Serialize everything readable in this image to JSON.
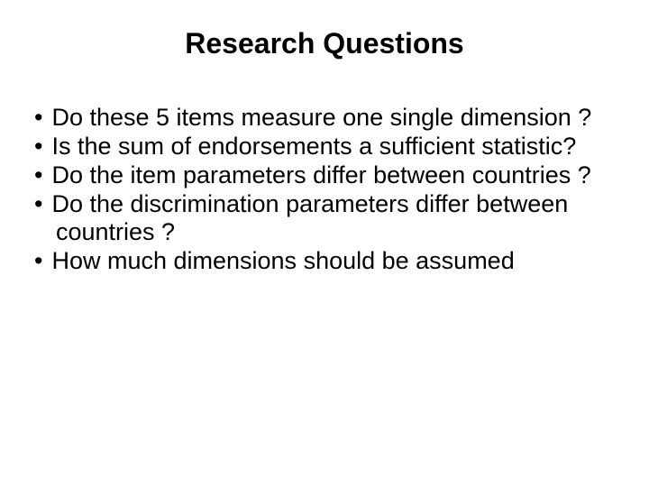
{
  "slide": {
    "title": "Research Questions",
    "title_fontsize": 32,
    "title_fontweight": "bold",
    "title_align": "center",
    "body_fontsize": 27,
    "background_color": "#ffffff",
    "text_color": "#000000",
    "font_family": "Arial",
    "bullets": [
      "Do these 5 items measure one single dimension ?",
      "Is the sum of endorsements a sufficient statistic?",
      "Do the item parameters differ between countries ?",
      "Do the discrimination parameters differ between countries ?",
      "How much dimensions should be assumed"
    ]
  }
}
